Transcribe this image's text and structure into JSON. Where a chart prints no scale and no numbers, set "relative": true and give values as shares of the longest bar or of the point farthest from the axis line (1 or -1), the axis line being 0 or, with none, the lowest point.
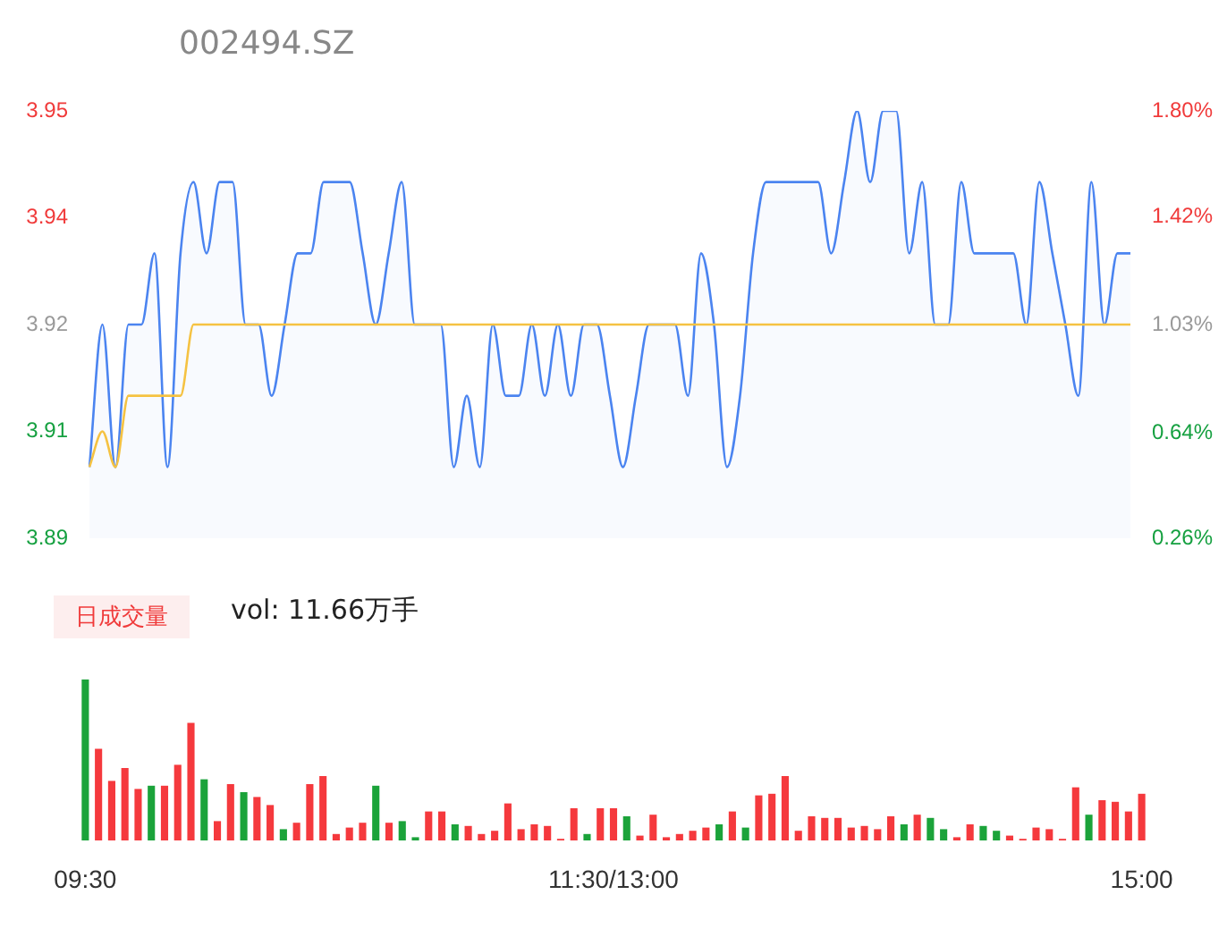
{
  "chart_data": [
    {
      "type": "line",
      "title": "002494.SZ",
      "categories": [
        null,
        null,
        null,
        null,
        null,
        null,
        null,
        null,
        null,
        null,
        null,
        null,
        null,
        null,
        null,
        null,
        null,
        null,
        null,
        null,
        null,
        null,
        null,
        null,
        null,
        null,
        null,
        null,
        null,
        null,
        null,
        null,
        null,
        null,
        null,
        null,
        null,
        null,
        null,
        null,
        null,
        null,
        null,
        null,
        null,
        null,
        null,
        null,
        null,
        null,
        null,
        null,
        null,
        null,
        null,
        null,
        null,
        null,
        null,
        null,
        null,
        null,
        null,
        null,
        null,
        null,
        null,
        null,
        null,
        null,
        null,
        null,
        null,
        null,
        null,
        null,
        null,
        null,
        null,
        null,
        null
      ],
      "series": [
        {
          "type": "area",
          "color": "#4b84f0",
          "values": [
            3.9,
            3.92,
            3.9,
            3.92,
            3.92,
            3.93,
            3.9,
            3.93,
            3.94,
            3.93,
            3.94,
            3.94,
            3.92,
            3.92,
            3.91,
            3.92,
            3.93,
            3.93,
            3.94,
            3.94,
            3.94,
            3.93,
            3.92,
            3.93,
            3.94,
            3.92,
            3.92,
            3.92,
            3.9,
            3.91,
            3.9,
            3.92,
            3.91,
            3.91,
            3.92,
            3.91,
            3.92,
            3.91,
            3.92,
            3.92,
            3.91,
            3.9,
            3.91,
            3.92,
            3.92,
            3.92,
            3.91,
            3.93,
            3.92,
            3.9,
            3.91,
            3.93,
            3.94,
            3.94,
            3.94,
            3.94,
            3.94,
            3.93,
            3.94,
            3.95,
            3.94,
            3.95,
            3.95,
            3.93,
            3.94,
            3.92,
            3.92,
            3.94,
            3.93,
            3.93,
            3.93,
            3.93,
            3.92,
            3.94,
            3.93,
            3.92,
            3.91,
            3.94,
            3.92,
            3.93,
            3.93
          ]
        },
        {
          "type": "line",
          "color": "#f5c242",
          "values": [
            3.9,
            3.905,
            3.9,
            3.91,
            3.91,
            3.91,
            3.91,
            3.91,
            3.92,
            3.92,
            3.92,
            3.92,
            3.92,
            3.92,
            3.92,
            3.92,
            3.92,
            3.92,
            3.92,
            3.92,
            3.92,
            3.92,
            3.92,
            3.92,
            3.92,
            3.92,
            3.92,
            3.92,
            3.92,
            3.92,
            3.92,
            3.92,
            3.92,
            3.92,
            3.92,
            3.92,
            3.92,
            3.92,
            3.92,
            3.92,
            3.92,
            3.92,
            3.92,
            3.92,
            3.92,
            3.92,
            3.92,
            3.92,
            3.92,
            3.92,
            3.92,
            3.92,
            3.92,
            3.92,
            3.92,
            3.92,
            3.92,
            3.92,
            3.92,
            3.92,
            3.92,
            3.92,
            3.92,
            3.92,
            3.92,
            3.92,
            3.92,
            3.92,
            3.92,
            3.92,
            3.92,
            3.92,
            3.92,
            3.92,
            3.92,
            3.92,
            3.92,
            3.92,
            3.92,
            3.92,
            3.92
          ]
        }
      ],
      "ylim": [
        3.89,
        3.95
      ],
      "yticks": [
        3.89,
        {
          "value": 3.905,
          "label": "3.91"
        },
        3.92,
        {
          "value": 3.935,
          "label": "3.94"
        },
        3.95
      ],
      "y2lim": [
        0.26,
        1.8
      ],
      "y2ticks": [
        {
          "value": 0.26,
          "label": "0.26%"
        },
        {
          "value": 0.64,
          "label": "0.64%"
        },
        {
          "value": 1.03,
          "label": "1.03%"
        },
        {
          "value": 1.42,
          "label": "1.42%"
        },
        {
          "value": 1.8,
          "label": "1.80%"
        }
      ],
      "tick_labels": "y",
      "marker": "none"
    },
    {
      "type": "bar",
      "title": "日成交量",
      "annotations": [
        "vol: 11.66万手"
      ],
      "relative": true,
      "tick_labels": "x",
      "categories": [
        "09:30",
        null,
        null,
        null,
        null,
        null,
        null,
        null,
        null,
        null,
        null,
        null,
        null,
        null,
        null,
        null,
        null,
        null,
        null,
        null,
        null,
        null,
        null,
        null,
        null,
        null,
        null,
        null,
        null,
        null,
        null,
        null,
        null,
        null,
        null,
        null,
        null,
        null,
        null,
        null,
        "11:30/13:00",
        null,
        null,
        null,
        null,
        null,
        null,
        null,
        null,
        null,
        null,
        null,
        null,
        null,
        null,
        null,
        null,
        null,
        null,
        null,
        null,
        null,
        null,
        null,
        null,
        null,
        null,
        null,
        null,
        null,
        null,
        null,
        null,
        null,
        null,
        null,
        null,
        null,
        null,
        null,
        "15:00"
      ],
      "values": [
        1.0,
        0.57,
        0.37,
        0.45,
        0.32,
        0.34,
        0.34,
        0.47,
        0.73,
        0.38,
        0.12,
        0.35,
        0.3,
        0.27,
        0.22,
        0.07,
        0.11,
        0.35,
        0.4,
        0.04,
        0.08,
        0.11,
        0.34,
        0.11,
        0.12,
        0.02,
        0.18,
        0.18,
        0.1,
        0.09,
        0.04,
        0.06,
        0.23,
        0.07,
        0.1,
        0.09,
        0.01,
        0.2,
        0.04,
        0.2,
        0.2,
        0.15,
        0.03,
        0.16,
        0.02,
        0.04,
        0.06,
        0.08,
        0.1,
        0.18,
        0.08,
        0.28,
        0.29,
        0.4,
        0.06,
        0.15,
        0.14,
        0.14,
        0.08,
        0.09,
        0.07,
        0.15,
        0.1,
        0.16,
        0.14,
        0.07,
        0.02,
        0.1,
        0.09,
        0.06,
        0.03,
        0.01,
        0.08,
        0.07,
        0.01,
        0.33,
        0.16,
        0.25,
        0.24,
        0.18,
        0.29
      ],
      "colors": [
        "#1ba33a",
        "#f5393d",
        "#f5393d",
        "#f5393d",
        "#f5393d",
        "#1ba33a",
        "#f5393d",
        "#f5393d",
        "#f5393d",
        "#1ba33a",
        "#f5393d",
        "#f5393d",
        "#1ba33a",
        "#f5393d",
        "#f5393d",
        "#1ba33a",
        "#f5393d",
        "#f5393d",
        "#f5393d",
        "#f5393d",
        "#f5393d",
        "#f5393d",
        "#1ba33a",
        "#f5393d",
        "#1ba33a",
        "#1ba33a",
        "#f5393d",
        "#f5393d",
        "#1ba33a",
        "#f5393d",
        "#f5393d",
        "#f5393d",
        "#f5393d",
        "#f5393d",
        "#f5393d",
        "#f5393d",
        "#f5393d",
        "#f5393d",
        "#1ba33a",
        "#f5393d",
        "#f5393d",
        "#1ba33a",
        "#f5393d",
        "#f5393d",
        "#f5393d",
        "#f5393d",
        "#f5393d",
        "#f5393d",
        "#1ba33a",
        "#f5393d",
        "#1ba33a",
        "#f5393d",
        "#f5393d",
        "#f5393d",
        "#f5393d",
        "#f5393d",
        "#f5393d",
        "#f5393d",
        "#f5393d",
        "#f5393d",
        "#f5393d",
        "#f5393d",
        "#1ba33a",
        "#f5393d",
        "#1ba33a",
        "#1ba33a",
        "#f5393d",
        "#f5393d",
        "#1ba33a",
        "#1ba33a",
        "#f5393d",
        "#f5393d",
        "#f5393d",
        "#f5393d",
        "#f5393d",
        "#f5393d",
        "#1ba33a",
        "#f5393d",
        "#f5393d",
        "#f5393d",
        "#f5393d"
      ]
    }
  ]
}
